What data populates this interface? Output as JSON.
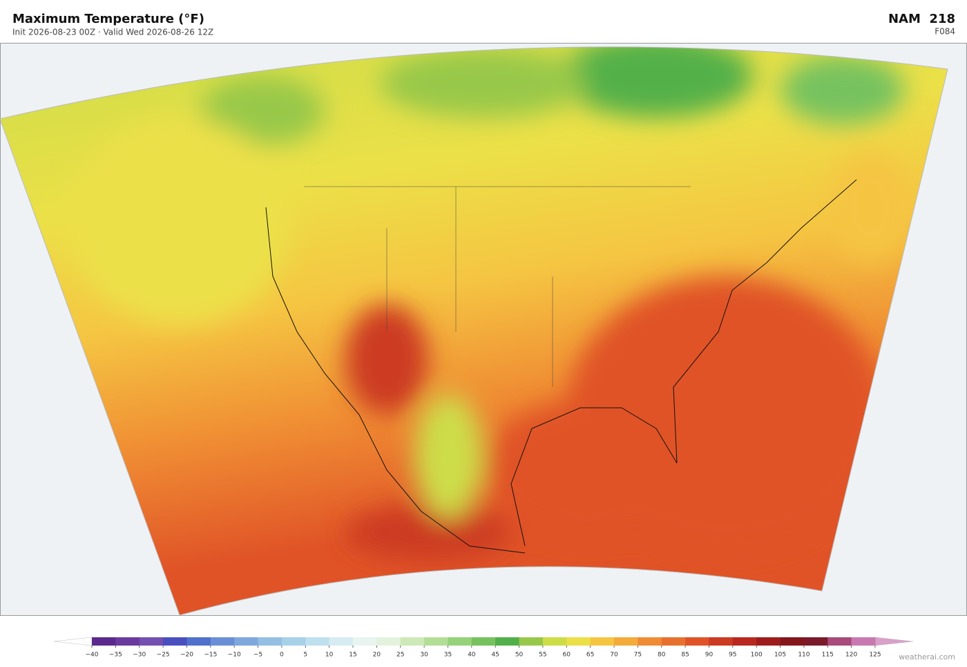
{
  "header": {
    "title": "Maximum Temperature  (°F)",
    "subtitle": "Init 2026-08-23 00Z  ·  Valid Wed 2026-08-26 12Z",
    "model": "NAM  218",
    "forecast_hour": "F084"
  },
  "colorbar": {
    "ticks": [
      {
        "value": -40,
        "label": "−40"
      },
      {
        "value": -35,
        "label": "−35"
      },
      {
        "value": -30,
        "label": "−30"
      },
      {
        "value": -25,
        "label": "−25"
      },
      {
        "value": -20,
        "label": "−20"
      },
      {
        "value": -15,
        "label": "−15"
      },
      {
        "value": -10,
        "label": "−10"
      },
      {
        "value": -5,
        "label": "−5"
      },
      0,
      5,
      10,
      15,
      20,
      25,
      30,
      35,
      40,
      45,
      50,
      55,
      60,
      65,
      70,
      75,
      80,
      85,
      90,
      95,
      100,
      105,
      110,
      115,
      120,
      125
    ],
    "colors": [
      "#5b2a8c",
      "#6a3a9e",
      "#7450b0",
      "#4a4fc0",
      "#5070cc",
      "#6a8fd6",
      "#7fa8dc",
      "#92bfe2",
      "#a8d0e8",
      "#bfe0ee",
      "#d6ecf2",
      "#e8f4f0",
      "#e3f2dc",
      "#cde9b8",
      "#b3de96",
      "#95d27a",
      "#76c25f",
      "#52b04a",
      "#98c84a",
      "#cddd48",
      "#ece048",
      "#f5c542",
      "#f3ab3a",
      "#ef8c33",
      "#e8702e",
      "#e05327",
      "#cc3a22",
      "#b8281f",
      "#9e1c1c",
      "#84171b",
      "#7a1a2a",
      "#a84a7a",
      "#c87ab0"
    ],
    "under_color": "#ffffff",
    "over_color": "#d9a0cc"
  },
  "watermark": "weatherai.com"
}
